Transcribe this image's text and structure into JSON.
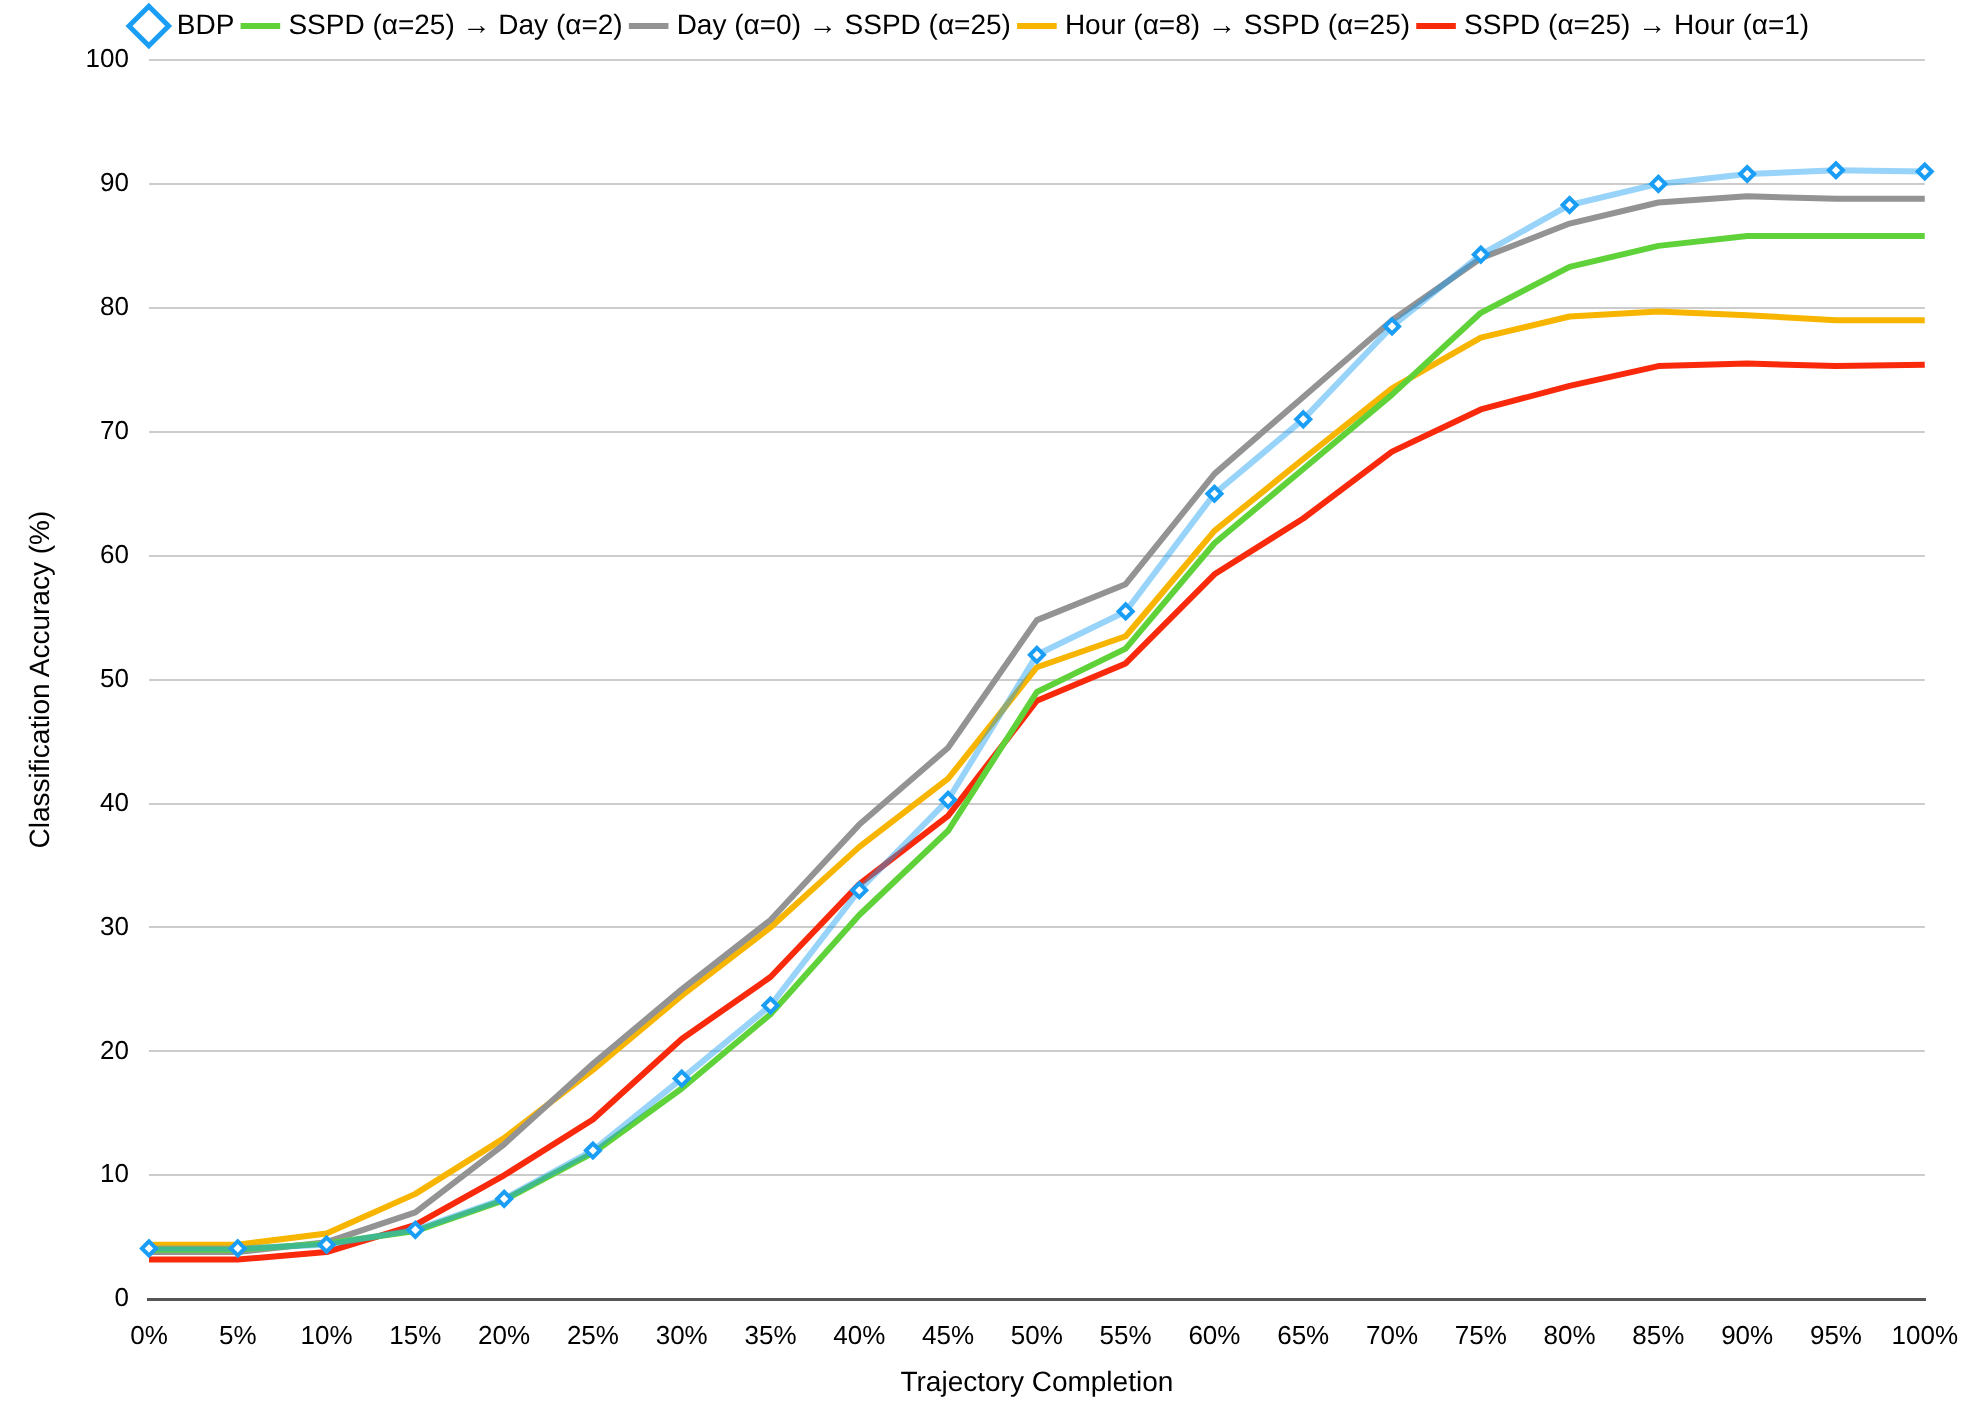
{
  "chart_data": {
    "type": "line",
    "xlabel": "Trajectory Completion",
    "ylabel": "Classification Accuracy (%)",
    "categories": [
      "0%",
      "5%",
      "10%",
      "15%",
      "20%",
      "25%",
      "30%",
      "35%",
      "40%",
      "45%",
      "50%",
      "55%",
      "60%",
      "65%",
      "70%",
      "75%",
      "80%",
      "85%",
      "90%",
      "95%",
      "100%"
    ],
    "series": [
      {
        "name": "BDP",
        "color": "#1a9ef5",
        "marker": "diamond",
        "values": [
          4.1,
          4.1,
          4.4,
          5.6,
          8.1,
          12,
          17.8,
          23.7,
          33,
          40.3,
          52,
          55.5,
          65,
          71,
          78.5,
          84.3,
          88.3,
          90,
          90.8,
          91.1,
          91
        ]
      },
      {
        "name": "SSPD (α=25) → Day (α=2)",
        "color": "#5fd23a",
        "values": [
          4,
          4,
          4.5,
          5.5,
          8,
          11.8,
          17,
          23,
          31,
          37.8,
          49,
          52.5,
          61,
          67,
          73,
          79.6,
          83.3,
          85,
          85.8,
          85.8,
          85.8
        ]
      },
      {
        "name": "Day (α=0) → SSPD (α=25)",
        "color": "#939393",
        "values": [
          3.8,
          3.8,
          4.6,
          7,
          12.5,
          19,
          25,
          30.6,
          38.3,
          44.5,
          54.8,
          57.7,
          66.6,
          72.8,
          79,
          84,
          86.8,
          88.5,
          89,
          88.8,
          88.8
        ]
      },
      {
        "name": "Hour (α=8) → SSPD (α=25)",
        "color": "#f7b500",
        "values": [
          4.4,
          4.4,
          5.3,
          8.5,
          13,
          18.5,
          24.5,
          30,
          36.5,
          42,
          51,
          53.5,
          62,
          67.8,
          73.5,
          77.6,
          79.3,
          79.7,
          79.4,
          79,
          79
        ]
      },
      {
        "name": "SSPD (α=25) → Hour (α=1)",
        "color": "#f92a0c",
        "values": [
          3.2,
          3.2,
          3.8,
          6,
          10,
          14.5,
          21,
          26,
          33.5,
          39,
          48.3,
          51.3,
          58.5,
          63,
          68.4,
          71.8,
          73.7,
          75.3,
          75.5,
          75.3,
          75.4
        ]
      }
    ],
    "ylim": [
      0,
      100
    ],
    "yticks": [
      0,
      10,
      20,
      30,
      40,
      50,
      60,
      70,
      80,
      90,
      100
    ],
    "grid": "y",
    "legend": "top",
    "marker": "none",
    "line_style": "solid"
  }
}
